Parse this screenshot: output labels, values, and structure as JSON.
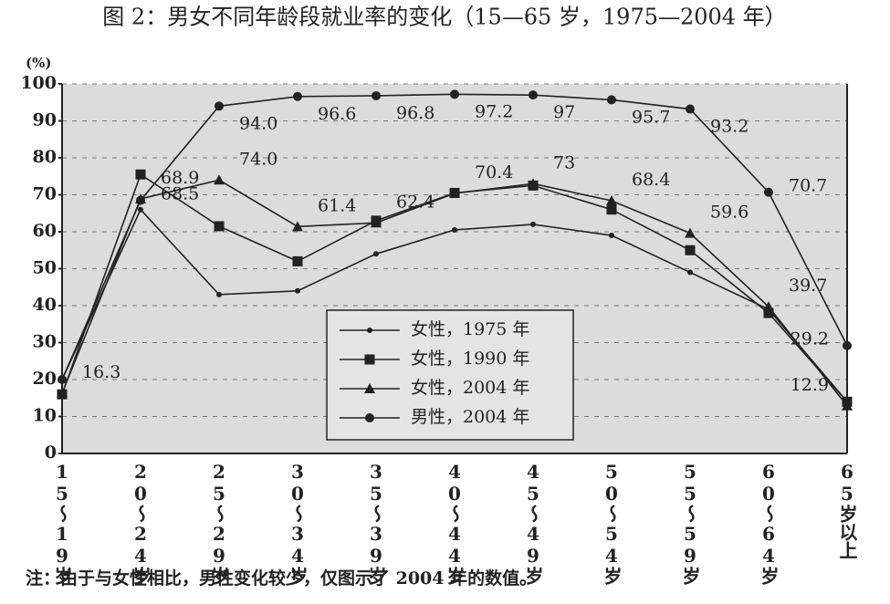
{
  "chart_data": {
    "type": "line",
    "title": "图 2：男女不同年龄段就业率的变化（15—65 岁，1975—2004 年）",
    "ylabel": "(%)",
    "note": "注：由于与女性相比，男性变化较少，仅图示了 2004 年的数值。",
    "categories": [
      "15～19岁",
      "20～24岁",
      "25～29岁",
      "30～34岁",
      "35～39岁",
      "40～44岁",
      "45～49岁",
      "50～54岁",
      "55～59岁",
      "60～64岁",
      "65岁以上"
    ],
    "ylim": [
      0,
      100
    ],
    "yticks": [
      0,
      10,
      20,
      30,
      40,
      50,
      60,
      70,
      80,
      90,
      100
    ],
    "grid": true,
    "series": [
      {
        "name": "女性，1975 年",
        "color": "#222222",
        "marker": "dot",
        "values": [
          20,
          66,
          43,
          44,
          54,
          60.5,
          62,
          59,
          49,
          39,
          14
        ]
      },
      {
        "name": "女性，1990 年",
        "color": "#222222",
        "marker": "square",
        "values": [
          16,
          75.5,
          61.5,
          52,
          63,
          70.5,
          72.5,
          66,
          55,
          38,
          14
        ]
      },
      {
        "name": "女性，2004 年",
        "color": "#222222",
        "marker": "triangle",
        "values": [
          16.3,
          68.9,
          74.0,
          61.4,
          62.4,
          70.4,
          73,
          68.4,
          59.6,
          39.7,
          12.9
        ],
        "value_labels": [
          "16.3",
          "68.9",
          "74.0",
          "61.4",
          "62.4",
          "70.4",
          "73",
          "68.4",
          "59.6",
          "39.7",
          "12.9"
        ]
      },
      {
        "name": "男性，2004 年",
        "color": "#222222",
        "marker": "circle",
        "values": [
          20,
          68.5,
          94.0,
          96.6,
          96.8,
          97.2,
          97,
          95.7,
          93.2,
          70.7,
          29.2
        ],
        "value_labels": [
          null,
          "68.5",
          "94.0",
          "96.6",
          "96.8",
          "97.2",
          "97",
          "95.7",
          "93.2",
          "70.7",
          "29.2"
        ]
      }
    ]
  }
}
